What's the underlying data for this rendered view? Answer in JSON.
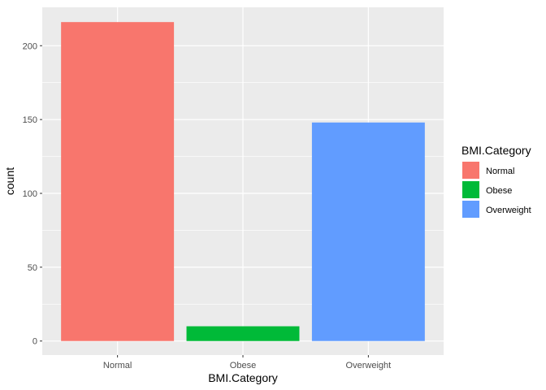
{
  "chart_data": {
    "type": "bar",
    "categories": [
      "Normal",
      "Obese",
      "Overweight"
    ],
    "values": [
      216,
      10,
      148
    ],
    "colors": [
      "#F8766D",
      "#00BA38",
      "#619CFF"
    ],
    "xlabel": "BMI.Category",
    "ylabel": "count",
    "ylim": [
      -9.5,
      226
    ],
    "yticks": [
      0,
      50,
      100,
      150,
      200
    ],
    "ytick_labels": [
      "0",
      "50",
      "100",
      "150",
      "200"
    ],
    "grid": true,
    "panel_background": "#EBEBEB",
    "legend": {
      "title": "BMI.Category",
      "placement": "right",
      "entries": [
        "Normal",
        "Obese",
        "Overweight"
      ]
    }
  }
}
